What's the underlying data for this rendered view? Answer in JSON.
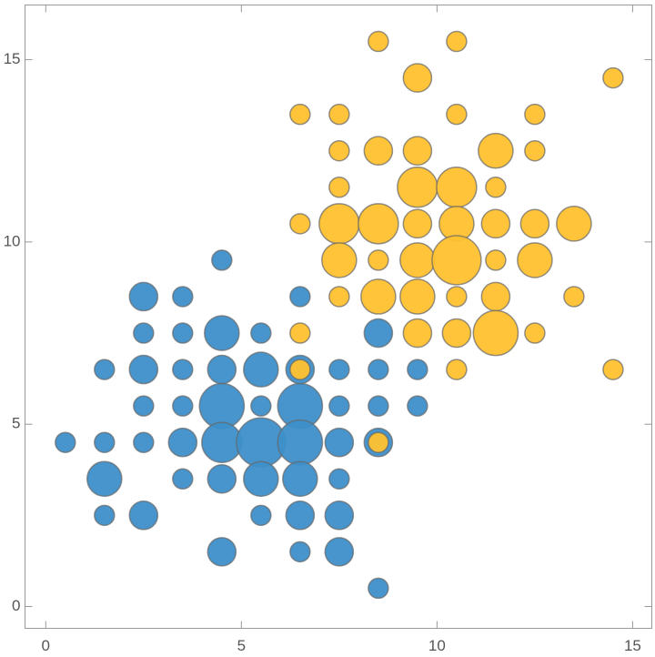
{
  "chart_data": {
    "type": "bubble",
    "xlim": [
      -0.53,
      15.49
    ],
    "ylim": [
      -0.6,
      16.5
    ],
    "xticks": [
      0,
      5,
      10,
      15
    ],
    "yticks": [
      0,
      5,
      10,
      15
    ],
    "series": [
      {
        "color": "#3d8fc9",
        "x": [
          0.5,
          1.5,
          1.5,
          1.5,
          1.5,
          2.5,
          2.5,
          2.5,
          2.5,
          2.5,
          2.5,
          3.5,
          3.5,
          3.5,
          3.5,
          3.5,
          3.5,
          4.5,
          4.5,
          4.5,
          4.5,
          4.5,
          4.5,
          4.5,
          5.5,
          5.5,
          5.5,
          5.5,
          5.5,
          5.5,
          6.5,
          6.5,
          6.5,
          6.5,
          6.5,
          6.5,
          6.5,
          7.5,
          7.5,
          7.5,
          7.5,
          7.5,
          7.5,
          8.5,
          8.5,
          8.5,
          8.5,
          8.5,
          9.5,
          9.5
        ],
        "values": [
          4.5,
          6.5,
          4.5,
          3.5,
          2.5,
          8.5,
          7.5,
          6.5,
          5.5,
          4.5,
          2.5,
          8.5,
          7.5,
          6.5,
          5.5,
          4.5,
          3.5,
          9.5,
          7.5,
          6.5,
          5.5,
          4.5,
          3.5,
          1.5,
          7.5,
          6.5,
          5.5,
          4.5,
          3.5,
          2.5,
          8.5,
          6.5,
          5.5,
          4.5,
          3.5,
          2.5,
          1.5,
          6.5,
          5.5,
          4.5,
          3.5,
          2.5,
          1.5,
          7.5,
          6.5,
          5.5,
          4.5,
          0.5,
          6.5,
          5.5
        ],
        "size": [
          1,
          1,
          1,
          3,
          1,
          2,
          1,
          2,
          1,
          1,
          2,
          1,
          1,
          1,
          1,
          2,
          1,
          1,
          3,
          2,
          5,
          4,
          2,
          2,
          1,
          3,
          1,
          6,
          3,
          1,
          1,
          2,
          5,
          5,
          3,
          2,
          1,
          1,
          1,
          2,
          1,
          2,
          2,
          2,
          1,
          1,
          2,
          1,
          1,
          1
        ]
      },
      {
        "color": "#ffc12e",
        "x": [
          8.5,
          10.5,
          9.5,
          14.5,
          6.5,
          7.5,
          10.5,
          12.5,
          7.5,
          8.5,
          9.5,
          11.5,
          12.5,
          7.5,
          9.5,
          10.5,
          11.5,
          6.5,
          7.5,
          8.5,
          9.5,
          10.5,
          11.5,
          12.5,
          13.5,
          7.5,
          8.5,
          9.5,
          10.5,
          11.5,
          12.5,
          7.5,
          8.5,
          9.5,
          10.5,
          11.5,
          13.5,
          6.5,
          9.5,
          10.5,
          11.5,
          12.5,
          6.5,
          10.5,
          14.5,
          8.5
        ],
        "values": [
          15.5,
          15.5,
          14.5,
          14.5,
          13.5,
          13.5,
          13.5,
          13.5,
          12.5,
          12.5,
          12.5,
          12.5,
          12.5,
          11.5,
          11.5,
          11.5,
          11.5,
          10.5,
          10.5,
          10.5,
          10.5,
          10.5,
          10.5,
          10.5,
          10.5,
          9.5,
          9.5,
          9.5,
          9.5,
          9.5,
          9.5,
          8.5,
          8.5,
          8.5,
          8.5,
          8.5,
          8.5,
          7.5,
          7.5,
          7.5,
          7.5,
          7.5,
          6.5,
          6.5,
          6.5,
          4.5
        ],
        "size": [
          1,
          1,
          2,
          1,
          1,
          1,
          1,
          1,
          1,
          2,
          2,
          3,
          1,
          1,
          4,
          4,
          1,
          1,
          4,
          4,
          2,
          3,
          2,
          2,
          3,
          3,
          1,
          3,
          6,
          1,
          3,
          1,
          3,
          3,
          1,
          2,
          1,
          1,
          2,
          2,
          5,
          1,
          1,
          1,
          1,
          1
        ]
      }
    ]
  }
}
